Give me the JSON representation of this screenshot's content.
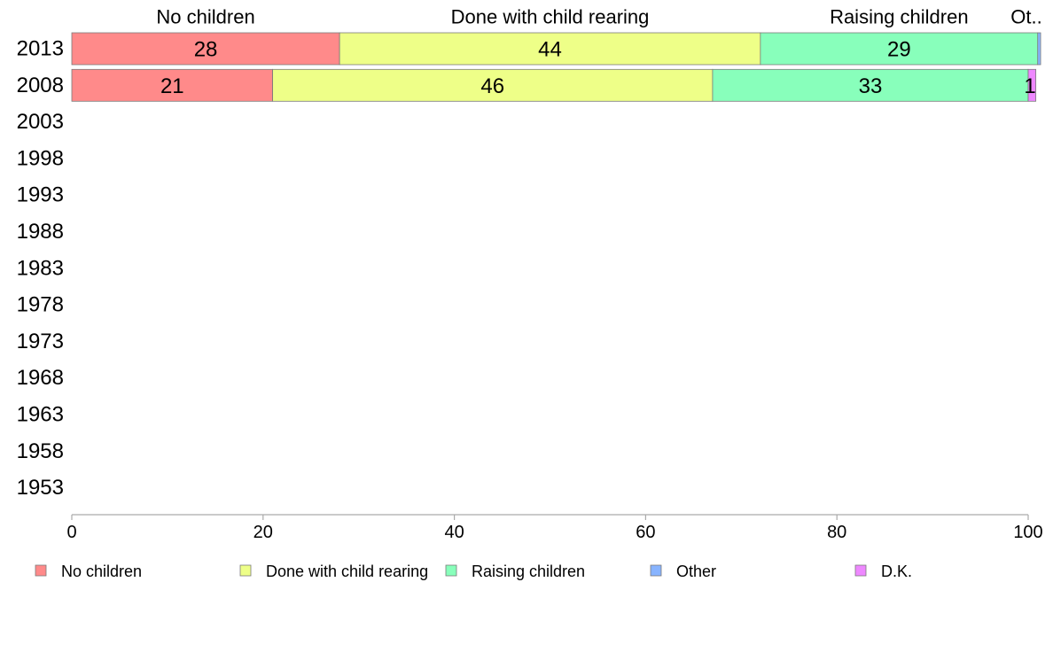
{
  "chart_data": {
    "type": "bar",
    "orientation": "horizontal",
    "stacked": true,
    "categories": [
      "2013",
      "2008",
      "2003",
      "1998",
      "1993",
      "1988",
      "1983",
      "1978",
      "1973",
      "1968",
      "1963",
      "1958",
      "1953"
    ],
    "series": [
      {
        "name": "No children",
        "values": [
          28,
          21,
          null,
          null,
          null,
          null,
          null,
          null,
          null,
          null,
          null,
          null,
          null
        ],
        "color": "#ff8a8a"
      },
      {
        "name": "Done with child rearing",
        "values": [
          44,
          46,
          null,
          null,
          null,
          null,
          null,
          null,
          null,
          null,
          null,
          null,
          null
        ],
        "color": "#eeff88"
      },
      {
        "name": "Raising children",
        "values": [
          29,
          33,
          null,
          null,
          null,
          null,
          null,
          null,
          null,
          null,
          null,
          null,
          null
        ],
        "color": "#88ffbb"
      },
      {
        "name": "Other",
        "values": [
          0.3,
          0,
          null,
          null,
          null,
          null,
          null,
          null,
          null,
          null,
          null,
          null,
          null
        ],
        "color": "#88b4ff"
      },
      {
        "name": "D.K.",
        "values": [
          0,
          0.8,
          null,
          null,
          null,
          null,
          null,
          null,
          null,
          null,
          null,
          null,
          null
        ],
        "color": "#ee88ff"
      }
    ],
    "top_labels": [
      "No children",
      "Done with child rearing",
      "Raising children",
      "Ot.."
    ],
    "data_labels": [
      [
        "28",
        "44",
        "29"
      ],
      [
        "21",
        "46",
        "33",
        "1"
      ]
    ],
    "xlim": [
      0,
      100
    ],
    "xticks": [
      "0",
      "20",
      "40",
      "60",
      "80",
      "100"
    ],
    "legend_position": "bottom",
    "grid": false,
    "xlabel": "",
    "ylabel": "",
    "title": ""
  }
}
